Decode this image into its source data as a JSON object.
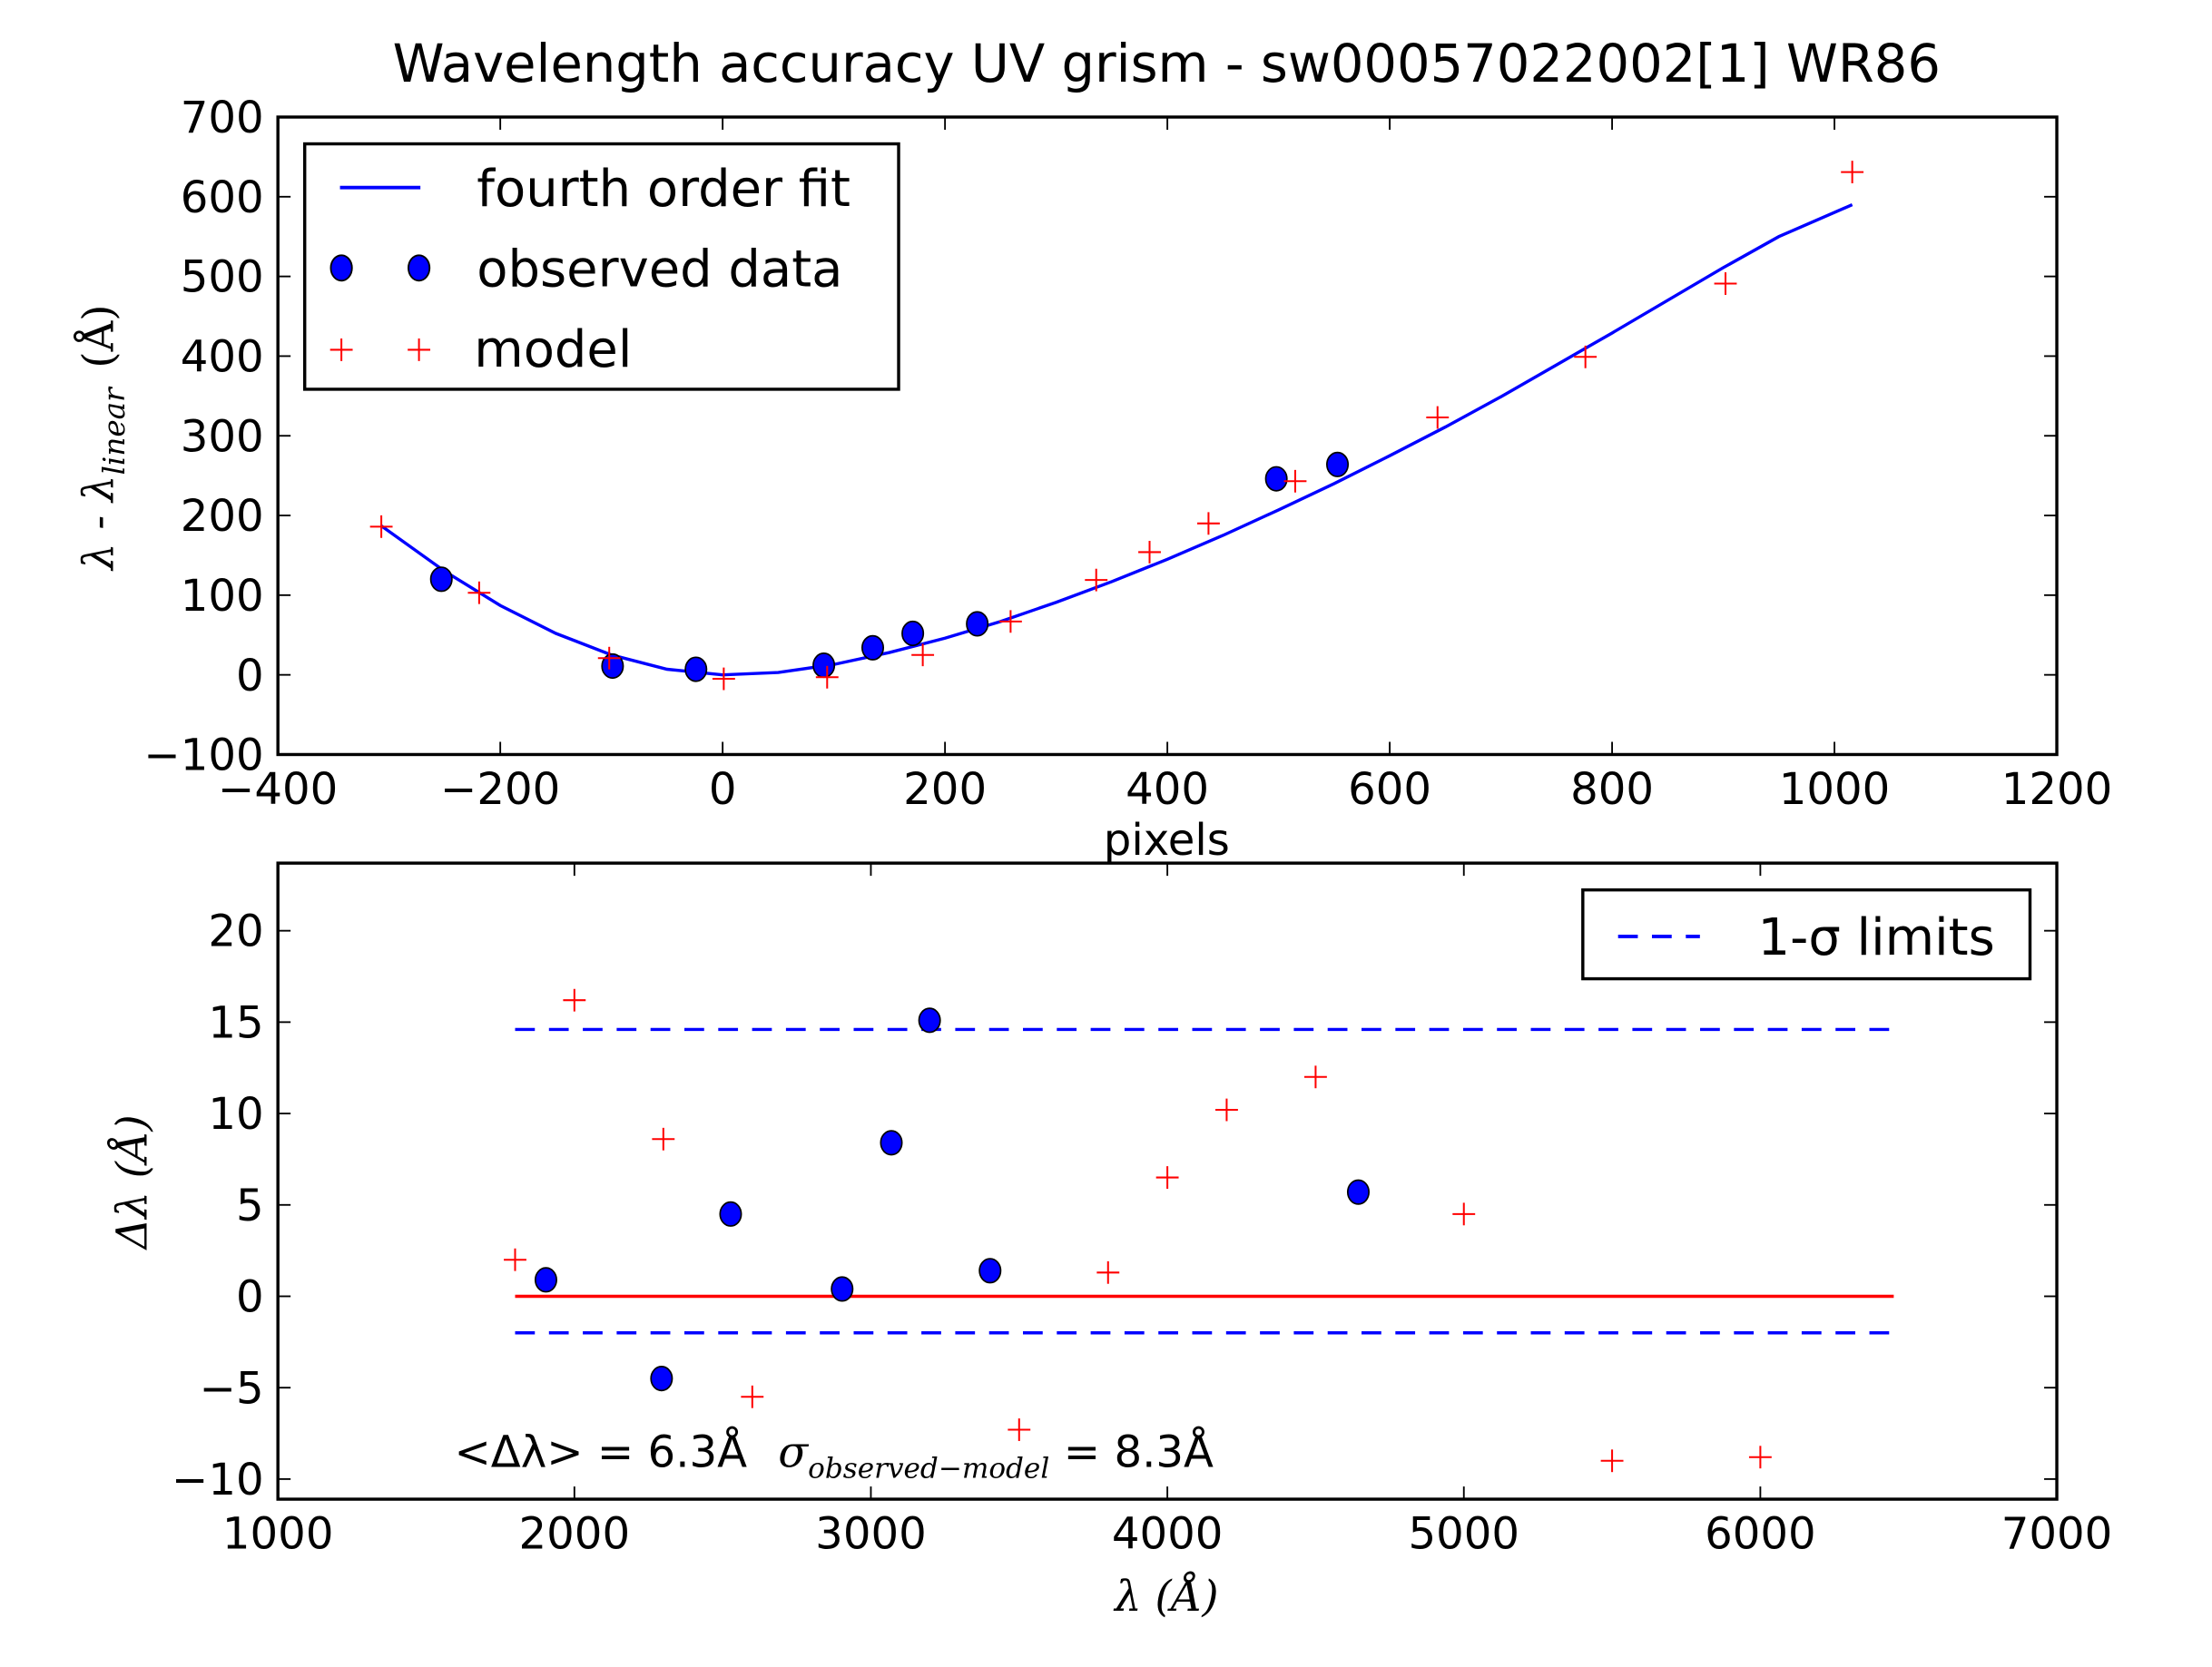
{
  "chart_data": [
    {
      "type": "line",
      "title": "Wavelength accuracy UV grism - sw00057022002[1] WR86",
      "xlabel": "pixels",
      "ylabel": "λ - λ",
      "ylabel_sub": "linear",
      "ylabel_unit": "(Å)",
      "xlim": [
        -400,
        1200
      ],
      "ylim": [
        -100,
        700
      ],
      "xticks": [
        -400,
        -200,
        0,
        200,
        400,
        600,
        800,
        1000,
        1200
      ],
      "xtick_labels": [
        "−400",
        "−200",
        "0",
        "200",
        "400",
        "600",
        "800",
        "1000",
        "1200"
      ],
      "yticks": [
        -100,
        0,
        100,
        200,
        300,
        400,
        500,
        600,
        700
      ],
      "ytick_labels": [
        "−100",
        "0",
        "100",
        "200",
        "300",
        "400",
        "500",
        "600",
        "700"
      ],
      "legend": {
        "position": "upper-left",
        "entries": [
          "fourth order fit",
          "observed data",
          "model"
        ]
      },
      "series": [
        {
          "name": "fourth order fit",
          "kind": "line",
          "color": "#0000ff",
          "x": [
            -307,
            -250,
            -200,
            -150,
            -100,
            -50,
            0,
            50,
            100,
            150,
            200,
            250,
            300,
            350,
            400,
            450,
            500,
            550,
            600,
            650,
            700,
            750,
            800,
            850,
            900,
            950,
            1016
          ],
          "y": [
            187,
            130,
            87,
            52,
            25,
            7,
            0,
            3,
            13,
            28,
            46,
            67,
            91,
            117,
            145,
            175,
            207,
            240,
            275,
            311,
            349,
            389,
            429,
            470,
            511,
            550,
            590
          ]
        },
        {
          "name": "observed data",
          "kind": "scatter-circle",
          "color": "#0000ff",
          "x": [
            -253,
            -99,
            -24,
            91,
            135,
            171,
            229,
            498,
            553
          ],
          "y": [
            120,
            11,
            7,
            12,
            34,
            52,
            64,
            246,
            264
          ]
        },
        {
          "name": "model",
          "kind": "scatter-plus",
          "color": "#ff0000",
          "x": [
            -307,
            -219,
            -102,
            1,
            94,
            180,
            259,
            336,
            384,
            437,
            515,
            643,
            776,
            902,
            1016
          ],
          "y": [
            186,
            103,
            21,
            -5,
            -3,
            25,
            67,
            119,
            154,
            190,
            243,
            323,
            399,
            491,
            631
          ]
        }
      ]
    },
    {
      "type": "scatter",
      "title": "",
      "xlabel": "λ (Å)",
      "ylabel": "Δλ (Å)",
      "xlim": [
        1000,
        7000
      ],
      "ylim": [
        -11.1,
        23.7
      ],
      "xticks": [
        1000,
        2000,
        3000,
        4000,
        5000,
        6000,
        7000
      ],
      "xtick_labels": [
        "1000",
        "2000",
        "3000",
        "4000",
        "5000",
        "6000",
        "7000"
      ],
      "yticks": [
        -10,
        -5,
        0,
        5,
        10,
        15,
        20
      ],
      "ytick_labels": [
        "−10",
        "−5",
        "0",
        "5",
        "10",
        "15",
        "20"
      ],
      "legend": {
        "position": "upper-right",
        "entries": [
          "1-σ limits"
        ]
      },
      "annotation": {
        "mean_label": "<Δλ> = 6.3Å",
        "sigma_symbol": "σ",
        "sigma_sub": "observed−model",
        "sigma_value": "= 8.3Å"
      },
      "series": [
        {
          "name": "zero line",
          "kind": "hline",
          "color": "#ff0000",
          "y": 0,
          "x_range": [
            1800,
            6450
          ]
        },
        {
          "name": "1-σ limits",
          "kind": "hline-dashed",
          "color": "#0000ff",
          "y_values": [
            14.6,
            -2.0
          ],
          "x_range": [
            1800,
            6450
          ]
        },
        {
          "name": "observed data",
          "kind": "scatter-circle",
          "color": "#0000ff",
          "x": [
            1904,
            2294,
            2527,
            2903,
            3069,
            3198,
            3402,
            4644
          ],
          "y": [
            0.9,
            -4.5,
            4.5,
            0.4,
            8.4,
            15.1,
            1.4,
            5.7
          ]
        },
        {
          "name": "model",
          "kind": "scatter-plus",
          "color": "#ff0000",
          "x": [
            1800,
            2000,
            2300,
            2600,
            3500,
            3800,
            4000,
            4200,
            4500,
            5000,
            5500,
            6000
          ],
          "y": [
            2.0,
            16.2,
            8.6,
            -5.5,
            -7.3,
            1.3,
            6.5,
            10.2,
            12.0,
            4.5,
            -9.0,
            -8.8
          ]
        }
      ]
    }
  ]
}
